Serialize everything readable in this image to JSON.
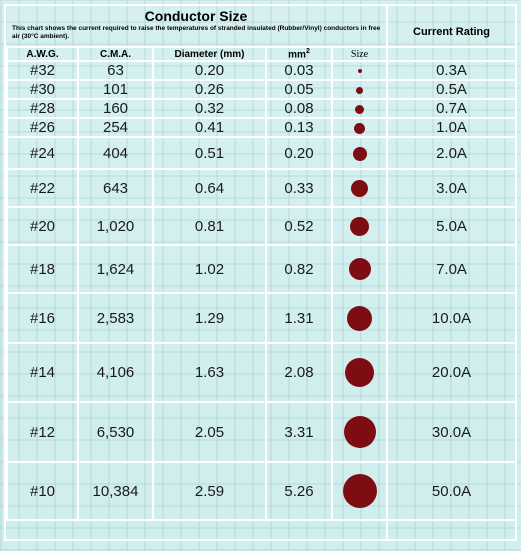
{
  "title": "Conductor Size",
  "subtitle": "This chart shows the current required to raise the temperatures of stranded insulated (Rubber/Vinyl) conductors in free air (30°C ambient).",
  "rating_header": "Current Rating",
  "columns": {
    "awg": "A.W.G.",
    "cma": "C.M.A.",
    "diameter": "Diameter (mm)",
    "area": "mm",
    "area_sup": "2",
    "size": "Size"
  },
  "rows": [
    {
      "awg": "#32",
      "cma": "63",
      "diameter": "0.20",
      "area": "0.03",
      "rating": "0.3A"
    },
    {
      "awg": "#30",
      "cma": "101",
      "diameter": "0.26",
      "area": "0.05",
      "rating": "0.5A"
    },
    {
      "awg": "#28",
      "cma": "160",
      "diameter": "0.32",
      "area": "0.08",
      "rating": "0.7A"
    },
    {
      "awg": "#26",
      "cma": "254",
      "diameter": "0.41",
      "area": "0.13",
      "rating": "1.0A"
    },
    {
      "awg": "#24",
      "cma": "404",
      "diameter": "0.51",
      "area": "0.20",
      "rating": "2.0A"
    },
    {
      "awg": "#22",
      "cma": "643",
      "diameter": "0.64",
      "area": "0.33",
      "rating": "3.0A"
    },
    {
      "awg": "#20",
      "cma": "1,020",
      "diameter": "0.81",
      "area": "0.52",
      "rating": "5.0A"
    },
    {
      "awg": "#18",
      "cma": "1,624",
      "diameter": "1.02",
      "area": "0.82",
      "rating": "7.0A"
    },
    {
      "awg": "#16",
      "cma": "2,583",
      "diameter": "1.29",
      "area": "1.31",
      "rating": "10.0A"
    },
    {
      "awg": "#14",
      "cma": "4,106",
      "diameter": "1.63",
      "area": "2.08",
      "rating": "20.0A"
    },
    {
      "awg": "#12",
      "cma": "6,530",
      "diameter": "2.05",
      "area": "3.31",
      "rating": "30.0A"
    },
    {
      "awg": "#10",
      "cma": "10,384",
      "diameter": "2.59",
      "area": "5.26",
      "rating": "50.0A"
    }
  ],
  "colors": {
    "dot": "#7d0d12",
    "background": "#d6f0f0",
    "gridline": "#ffffff"
  }
}
